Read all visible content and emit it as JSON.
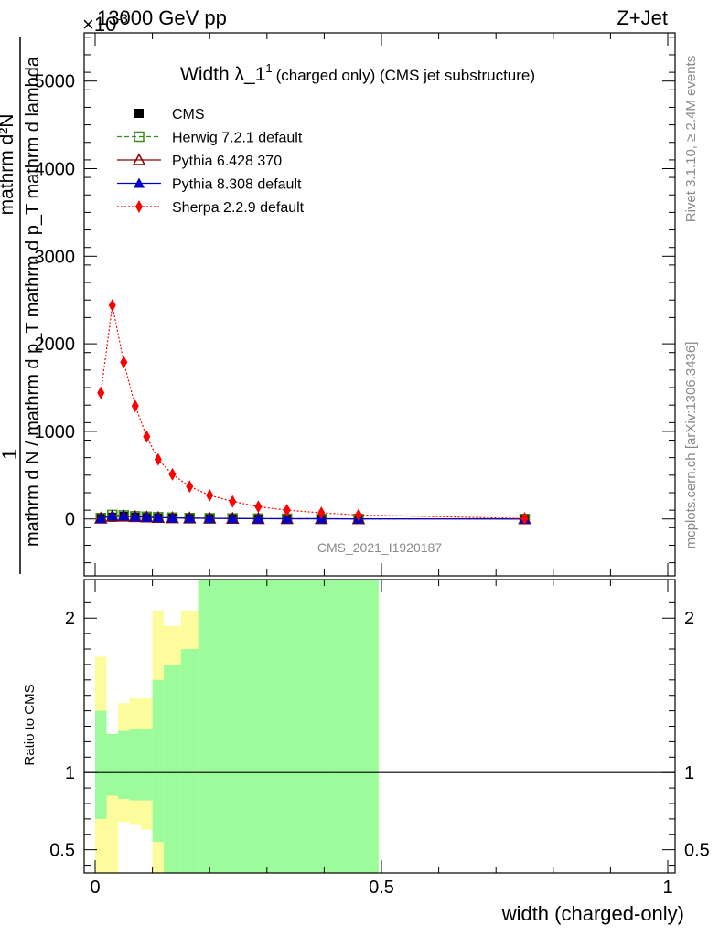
{
  "header": {
    "collision": "13000 GeV pp",
    "process": "Z+Jet",
    "exponent_label": "×10",
    "exponent_power": "-3"
  },
  "side_labels": {
    "rivet": "Rivet 3.1.10, ≥ 2.4M events",
    "mcplots": "mcplots.cern.ch [arXiv:1306.3436]"
  },
  "chart_data": [
    {
      "type": "scatter",
      "title_main": "Width λ_1",
      "title_sup": "1",
      "title_rest": "(charged only) (CMS jet substructure)",
      "analysis_id": "CMS_2021_I1920187",
      "ylabel_numerator": "mathrm d²N",
      "ylabel_denominator": "mathrm d N / mathrm d p_T mathrm d p_T mathrm d lambda",
      "ylabel_prefix": "1",
      "xlim": [
        0,
        1
      ],
      "ylim": [
        -650,
        5550
      ],
      "y_ticks": [
        0,
        1000,
        2000,
        3000,
        4000,
        5000
      ],
      "y_tick_labels": [
        "0",
        "1000",
        "2000",
        "3000",
        "4000",
        "5000"
      ],
      "x": [
        0.01,
        0.03,
        0.05,
        0.07,
        0.09,
        0.11,
        0.135,
        0.165,
        0.2,
        0.24,
        0.285,
        0.335,
        0.395,
        0.46,
        0.75
      ],
      "series": [
        {
          "name": "CMS",
          "color": "#000000",
          "marker": "square-filled",
          "values": [
            5,
            20,
            30,
            20,
            15,
            10,
            8,
            6,
            5,
            4,
            3,
            2,
            2,
            1,
            0
          ]
        },
        {
          "name": "Herwig 7.2.1 default",
          "color": "#3a8c1e",
          "marker": "square-open",
          "line": "dashed",
          "values": [
            10,
            45,
            40,
            30,
            25,
            20,
            15,
            10,
            8,
            6,
            4,
            3,
            2,
            1,
            0
          ]
        },
        {
          "name": "Pythia 6.428 370",
          "color": "#8b0000",
          "marker": "triangle-open",
          "line": "solid",
          "values": [
            8,
            30,
            30,
            25,
            20,
            15,
            12,
            9,
            7,
            5,
            3,
            2,
            2,
            1,
            0
          ]
        },
        {
          "name": "Pythia 8.308 default",
          "color": "#0000cc",
          "marker": "triangle-filled",
          "line": "solid",
          "values": [
            8,
            35,
            35,
            25,
            20,
            15,
            12,
            9,
            7,
            5,
            3,
            2,
            2,
            1,
            0
          ]
        },
        {
          "name": "Sherpa 2.2.9 default",
          "color": "#ff0000",
          "marker": "diamond-filled",
          "line": "dotted",
          "values": [
            1440,
            2440,
            1790,
            1290,
            940,
            680,
            510,
            370,
            270,
            200,
            140,
            100,
            70,
            45,
            5
          ]
        }
      ],
      "legend_position": "top-left"
    },
    {
      "type": "area",
      "ylabel": "Ratio to CMS",
      "xlabel": "width (charged-only)",
      "xlim": [
        0,
        1
      ],
      "ylim": [
        0.35,
        2.25
      ],
      "x_ticks": [
        0,
        0.5,
        1
      ],
      "x_tick_labels": [
        "0",
        "0.5",
        "1"
      ],
      "y_ticks": [
        0.5,
        1,
        2
      ],
      "y_tick_labels": [
        "0.5",
        "1",
        "2"
      ],
      "reference_line": 1,
      "bin_edges": [
        0,
        0.02,
        0.04,
        0.06,
        0.08,
        0.1,
        0.12,
        0.15,
        0.18,
        0.42,
        0.495,
        1.0
      ],
      "band_stat": {
        "name": "stat",
        "color": "#9cfc9c",
        "lo": [
          0.7,
          0.85,
          0.83,
          0.82,
          0.82,
          0.55,
          0.35,
          0.35,
          0.35,
          0.35,
          null,
          0.35
        ],
        "hi": [
          1.4,
          1.25,
          1.27,
          1.28,
          1.28,
          1.6,
          1.7,
          1.8,
          2.25,
          2.25,
          null,
          2.1
        ]
      },
      "band_total": {
        "name": "stat+syst",
        "color": "#fcfc9c",
        "lo": [
          0.35,
          0.35,
          0.68,
          0.66,
          0.63,
          0.35,
          0.35,
          0.35,
          0.35,
          0.35,
          null,
          0.35
        ],
        "hi": [
          1.75,
          1.2,
          1.45,
          1.48,
          1.48,
          2.05,
          1.95,
          2.05,
          2.25,
          2.25,
          null,
          2.25
        ]
      }
    }
  ]
}
